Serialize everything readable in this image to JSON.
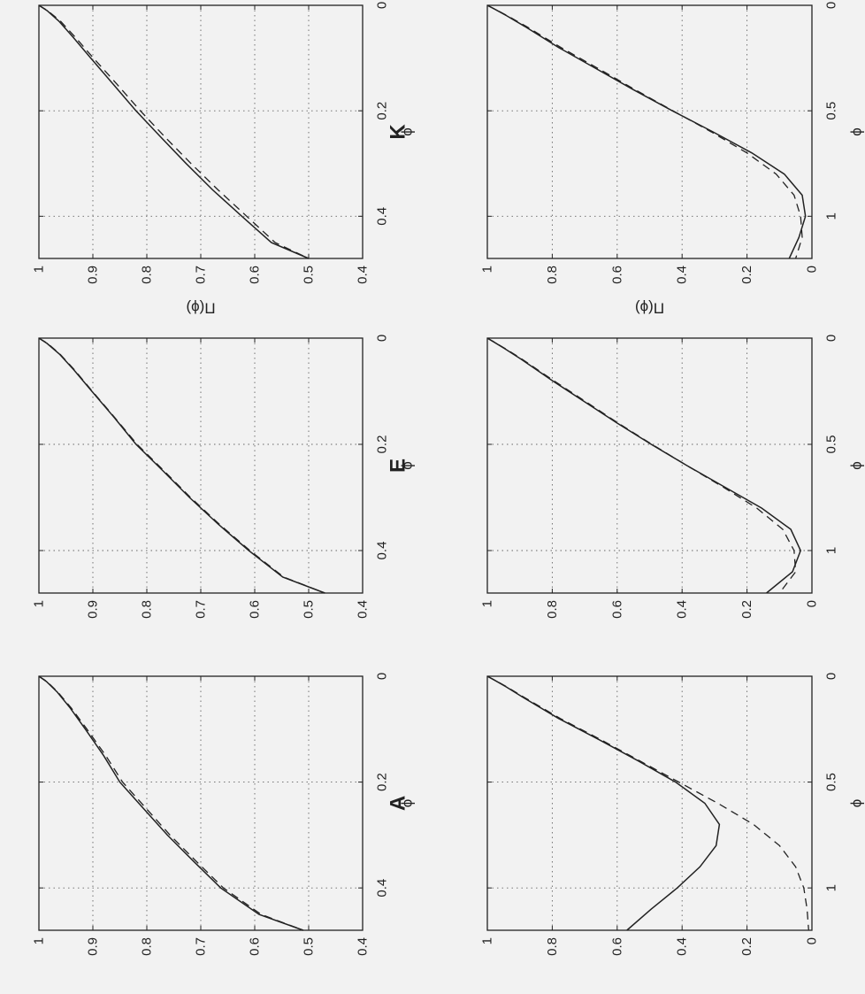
{
  "page": {
    "background": "#f2f2f2",
    "ink": "#222222"
  },
  "chart_data": [
    {
      "type": "line",
      "id": "K-top",
      "title": "K",
      "xlabel": "ϕ",
      "ylabel": "Π(ϕ)",
      "xlim": [
        0,
        0.48
      ],
      "ylim": [
        0.4,
        1
      ],
      "xticks": [
        0,
        0.2,
        0.4
      ],
      "xtick_labels": [
        "0",
        "0.2",
        "0.4"
      ],
      "yticks": [
        0.4,
        0.5,
        0.6,
        0.7,
        0.8,
        0.9,
        1
      ],
      "ytick_labels": [
        "0.4",
        "0.5",
        "0.6",
        "0.7",
        "0.8",
        "0.9",
        "1"
      ],
      "grid": true,
      "series": [
        {
          "style": "solid",
          "x": [
            0,
            0.01,
            0.03,
            0.06,
            0.1,
            0.15,
            0.2,
            0.25,
            0.3,
            0.35,
            0.4,
            0.45,
            0.48
          ],
          "y": [
            1,
            0.985,
            0.963,
            0.937,
            0.904,
            0.862,
            0.82,
            0.774,
            0.727,
            0.678,
            0.624,
            0.569,
            0.5
          ]
        },
        {
          "style": "dashed",
          "x": [
            0,
            0.01,
            0.03,
            0.06,
            0.1,
            0.15,
            0.2,
            0.25,
            0.3,
            0.35,
            0.4,
            0.45,
            0.48
          ],
          "y": [
            1,
            0.984,
            0.96,
            0.933,
            0.899,
            0.855,
            0.812,
            0.766,
            0.718,
            0.668,
            0.615,
            0.562,
            0.5
          ]
        }
      ]
    },
    {
      "type": "line",
      "id": "E-top",
      "title": "E",
      "xlabel": "ϕ",
      "ylabel": "",
      "xlim": [
        0,
        0.48
      ],
      "ylim": [
        0.4,
        1
      ],
      "xticks": [
        0,
        0.2,
        0.4
      ],
      "xtick_labels": [
        "0",
        "0.2",
        "0.4"
      ],
      "yticks": [
        0.4,
        0.5,
        0.6,
        0.7,
        0.8,
        0.9,
        1
      ],
      "ytick_labels": [
        "0.4",
        "0.5",
        "0.6",
        "0.7",
        "0.8",
        "0.9",
        "1"
      ],
      "grid": true,
      "series": [
        {
          "style": "solid",
          "x": [
            0,
            0.01,
            0.03,
            0.06,
            0.1,
            0.15,
            0.2,
            0.25,
            0.3,
            0.35,
            0.4,
            0.45,
            0.48
          ],
          "y": [
            1,
            0.985,
            0.962,
            0.935,
            0.902,
            0.86,
            0.82,
            0.77,
            0.721,
            0.668,
            0.611,
            0.548,
            0.47
          ]
        },
        {
          "style": "dashed",
          "x": [
            0,
            0.01,
            0.03,
            0.06,
            0.1,
            0.15,
            0.2,
            0.25,
            0.3,
            0.35,
            0.4,
            0.45,
            0.48
          ],
          "y": [
            1,
            0.984,
            0.961,
            0.934,
            0.901,
            0.859,
            0.818,
            0.768,
            0.719,
            0.666,
            0.609,
            0.546,
            0.47
          ]
        }
      ]
    },
    {
      "type": "line",
      "id": "A-top",
      "title": "A",
      "xlabel": "ϕ",
      "ylabel": "",
      "xlim": [
        0,
        0.48
      ],
      "ylim": [
        0.4,
        1
      ],
      "xticks": [
        0,
        0.2,
        0.4
      ],
      "xtick_labels": [
        "0",
        "0.2",
        "0.4"
      ],
      "yticks": [
        0.4,
        0.5,
        0.6,
        0.7,
        0.8,
        0.9,
        1
      ],
      "ytick_labels": [
        "0.4",
        "0.5",
        "0.6",
        "0.7",
        "0.8",
        "0.9",
        "1"
      ],
      "grid": true,
      "series": [
        {
          "style": "solid",
          "x": [
            0,
            0.01,
            0.03,
            0.06,
            0.1,
            0.15,
            0.2,
            0.25,
            0.3,
            0.35,
            0.4,
            0.45,
            0.48
          ],
          "y": [
            1,
            0.986,
            0.966,
            0.942,
            0.914,
            0.88,
            0.85,
            0.806,
            0.762,
            0.713,
            0.663,
            0.592,
            0.51
          ]
        },
        {
          "style": "dashed",
          "x": [
            0,
            0.01,
            0.03,
            0.06,
            0.1,
            0.15,
            0.2,
            0.25,
            0.3,
            0.35,
            0.4,
            0.45,
            0.48
          ],
          "y": [
            1,
            0.985,
            0.965,
            0.94,
            0.911,
            0.876,
            0.845,
            0.801,
            0.757,
            0.708,
            0.658,
            0.588,
            0.51
          ]
        }
      ]
    },
    {
      "type": "line",
      "id": "K-bottom",
      "title": "",
      "xlabel": "ϕ",
      "ylabel": "Π(ϕ)",
      "xlim": [
        0,
        1.2
      ],
      "ylim": [
        0,
        1
      ],
      "xticks": [
        0,
        0.5,
        1
      ],
      "xtick_labels": [
        "0",
        "0.5",
        "1"
      ],
      "yticks": [
        0,
        0.2,
        0.4,
        0.6,
        0.8,
        1
      ],
      "ytick_labels": [
        "0",
        "0.2",
        "0.4",
        "0.6",
        "0.8",
        "1"
      ],
      "grid": true,
      "series": [
        {
          "style": "solid",
          "x": [
            0,
            0.02,
            0.05,
            0.1,
            0.2,
            0.3,
            0.4,
            0.5,
            0.6,
            0.7,
            0.8,
            0.9,
            1.0,
            1.1,
            1.2
          ],
          "y": [
            1,
            0.975,
            0.94,
            0.885,
            0.78,
            0.665,
            0.55,
            0.43,
            0.305,
            0.185,
            0.085,
            0.03,
            0.02,
            0.04,
            0.07
          ]
        },
        {
          "style": "dashed",
          "x": [
            0,
            0.02,
            0.05,
            0.1,
            0.2,
            0.3,
            0.4,
            0.5,
            0.6,
            0.7,
            0.8,
            0.9,
            1.0,
            1.1,
            1.2
          ],
          "y": [
            1,
            0.974,
            0.938,
            0.88,
            0.773,
            0.658,
            0.545,
            0.428,
            0.31,
            0.2,
            0.11,
            0.055,
            0.035,
            0.03,
            0.05
          ]
        }
      ]
    },
    {
      "type": "line",
      "id": "E-bottom",
      "title": "",
      "xlabel": "ϕ",
      "ylabel": "",
      "xlim": [
        0,
        1.2
      ],
      "ylim": [
        0,
        1
      ],
      "xticks": [
        0,
        0.5,
        1
      ],
      "xtick_labels": [
        "0",
        "0.5",
        "1"
      ],
      "yticks": [
        0,
        0.2,
        0.4,
        0.6,
        0.8,
        1
      ],
      "ytick_labels": [
        "0",
        "0.2",
        "0.4",
        "0.6",
        "0.8",
        "1"
      ],
      "grid": true,
      "series": [
        {
          "style": "solid",
          "x": [
            0,
            0.02,
            0.05,
            0.1,
            0.2,
            0.3,
            0.4,
            0.5,
            0.6,
            0.7,
            0.8,
            0.9,
            1.0,
            1.1,
            1.2
          ],
          "y": [
            1,
            0.978,
            0.946,
            0.895,
            0.8,
            0.7,
            0.6,
            0.495,
            0.385,
            0.27,
            0.155,
            0.065,
            0.035,
            0.06,
            0.14
          ]
        },
        {
          "style": "dashed",
          "x": [
            0,
            0.02,
            0.05,
            0.1,
            0.2,
            0.3,
            0.4,
            0.5,
            0.6,
            0.7,
            0.8,
            0.9,
            1.0,
            1.1,
            1.2
          ],
          "y": [
            1,
            0.977,
            0.944,
            0.892,
            0.796,
            0.696,
            0.597,
            0.493,
            0.385,
            0.275,
            0.17,
            0.09,
            0.055,
            0.05,
            0.1
          ]
        }
      ]
    },
    {
      "type": "line",
      "id": "A-bottom",
      "title": "",
      "xlabel": "ϕ",
      "ylabel": "",
      "xlim": [
        0,
        1.2
      ],
      "ylim": [
        0,
        1
      ],
      "xticks": [
        0,
        0.5,
        1
      ],
      "xtick_labels": [
        "0",
        "0.5",
        "1"
      ],
      "yticks": [
        0,
        0.2,
        0.4,
        0.6,
        0.8,
        1
      ],
      "ytick_labels": [
        "0",
        "0.2",
        "0.4",
        "0.6",
        "0.8",
        "1"
      ],
      "grid": true,
      "series": [
        {
          "style": "solid",
          "x": [
            0,
            0.02,
            0.05,
            0.1,
            0.2,
            0.3,
            0.4,
            0.5,
            0.6,
            0.7,
            0.8,
            0.9,
            1.0,
            1.1,
            1.2
          ],
          "y": [
            1,
            0.976,
            0.942,
            0.89,
            0.78,
            0.655,
            0.535,
            0.42,
            0.33,
            0.285,
            0.295,
            0.345,
            0.415,
            0.495,
            0.57
          ]
        },
        {
          "style": "dashed",
          "x": [
            0,
            0.02,
            0.05,
            0.1,
            0.2,
            0.3,
            0.4,
            0.5,
            0.6,
            0.7,
            0.8,
            0.9,
            1.0,
            1.1,
            1.2
          ],
          "y": [
            1,
            0.975,
            0.94,
            0.886,
            0.775,
            0.65,
            0.53,
            0.41,
            0.29,
            0.18,
            0.1,
            0.05,
            0.025,
            0.015,
            0.01
          ]
        }
      ]
    }
  ]
}
